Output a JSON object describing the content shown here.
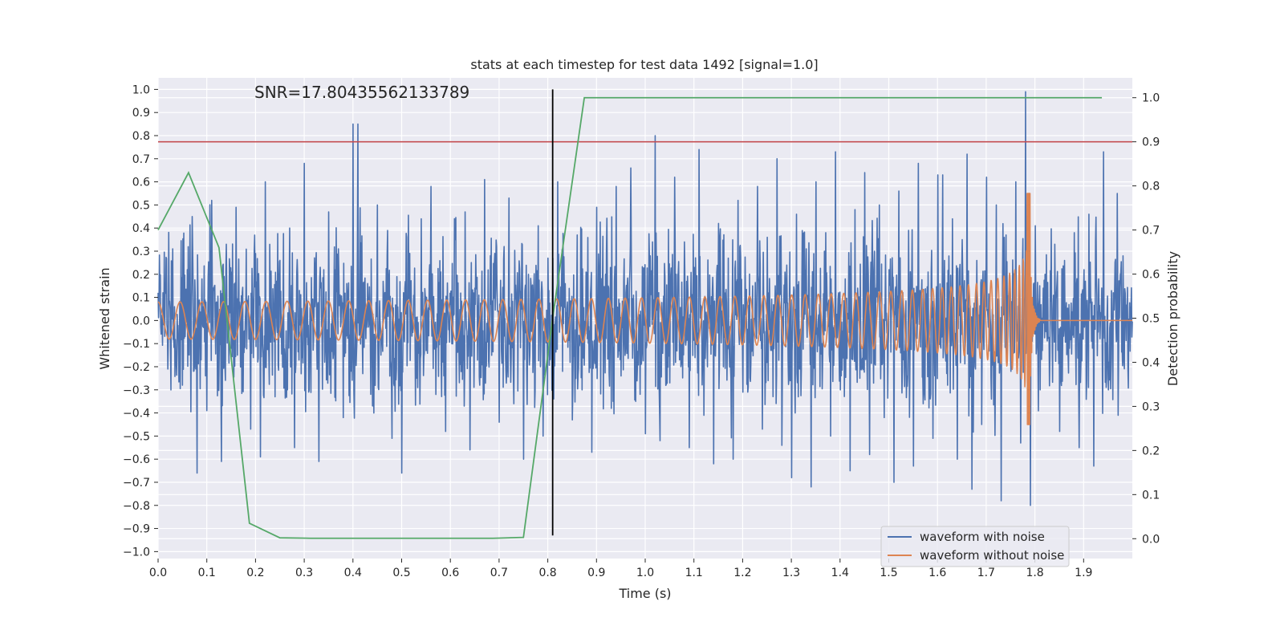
{
  "chart_data": {
    "type": "line",
    "title": "stats at each timestep for test data 1492 [signal=1.0]",
    "xlabel": "Time (s)",
    "ylabel": "Whitened strain",
    "y2label": "Detection probability",
    "annotation": "SNR=17.80435562133789",
    "xlim": [
      0.0,
      2.0
    ],
    "ylim": [
      -1.03,
      1.05
    ],
    "y2lim": [
      -0.045,
      1.045
    ],
    "xticks": [
      0.0,
      0.1,
      0.2,
      0.3,
      0.4,
      0.5,
      0.6,
      0.7,
      0.8,
      0.9,
      1.0,
      1.1,
      1.2,
      1.3,
      1.4,
      1.5,
      1.6,
      1.7,
      1.8,
      1.9
    ],
    "xtick_labels": [
      "0.0",
      "0.1",
      "0.2",
      "0.3",
      "0.4",
      "0.5",
      "0.6",
      "0.7",
      "0.8",
      "0.9",
      "1.0",
      "1.1",
      "1.2",
      "1.3",
      "1.4",
      "1.5",
      "1.6",
      "1.7",
      "1.8",
      "1.9"
    ],
    "yticks": [
      1.0,
      0.9,
      0.8,
      0.7,
      0.6,
      0.5,
      0.4,
      0.3,
      0.2,
      0.1,
      0.0,
      -0.1,
      -0.2,
      -0.3,
      -0.4,
      -0.5,
      -0.6,
      -0.7,
      -0.8,
      -0.9,
      -1.0
    ],
    "ytick_labels": [
      "1.0",
      "0.9",
      "0.8",
      "0.7",
      "0.6",
      "0.5",
      "0.4",
      "0.3",
      "0.2",
      "0.1",
      "0.0",
      "−0.1",
      "−0.2",
      "−0.3",
      "−0.4",
      "−0.5",
      "−0.6",
      "−0.7",
      "−0.8",
      "−0.9",
      "−1.0"
    ],
    "y2ticks": [
      1.0,
      0.9,
      0.8,
      0.7,
      0.6,
      0.5,
      0.4,
      0.3,
      0.2,
      0.1,
      0.0
    ],
    "y2tick_labels": [
      "1.0",
      "0.9",
      "0.8",
      "0.7",
      "0.6",
      "0.5",
      "0.4",
      "0.3",
      "0.2",
      "0.1",
      "0.0"
    ],
    "threshold": {
      "axis": "y2",
      "value": 0.9,
      "color": "#c44e52"
    },
    "detection_time": {
      "x": 0.81,
      "y_from": -0.93,
      "y_to": 1.0,
      "color": "#000000"
    },
    "legend": {
      "placement": "lower-right",
      "entries": [
        {
          "label": "waveform with noise",
          "color": "#4c72b0"
        },
        {
          "label": "waveform without noise",
          "color": "#dd8452"
        }
      ]
    },
    "series": [
      {
        "name": "Detection probability",
        "axis": "y2",
        "color": "#55a868",
        "x": [
          0.0,
          0.0625,
          0.125,
          0.1875,
          0.25,
          0.3125,
          0.375,
          0.4375,
          0.5,
          0.5625,
          0.625,
          0.6875,
          0.75,
          0.8125,
          0.875,
          0.9375,
          1.0,
          1.0625,
          1.125,
          1.1875,
          1.25,
          1.3125,
          1.375,
          1.4375,
          1.5,
          1.5625,
          1.625,
          1.6875,
          1.75,
          1.8125,
          1.875,
          1.9375
        ],
        "values": [
          0.7,
          0.83,
          0.66,
          0.035,
          0.002,
          0.001,
          0.001,
          0.001,
          0.001,
          0.001,
          0.001,
          0.001,
          0.003,
          0.52,
          1.0,
          1.0,
          1.0,
          1.0,
          1.0,
          1.0,
          1.0,
          1.0,
          1.0,
          1.0,
          1.0,
          1.0,
          1.0,
          1.0,
          1.0,
          1.0,
          1.0,
          1.0
        ]
      },
      {
        "name": "waveform with noise",
        "axis": "y",
        "color": "#4c72b0",
        "x_start": 0.0,
        "x_end": 2.0,
        "values": [
          0.12,
          -0.21,
          0.31,
          -0.05,
          -0.28,
          0.22,
          0.45,
          -0.66,
          0.18,
          -0.39,
          0.52,
          0.08,
          -0.61,
          0.33,
          -0.12,
          0.49,
          -0.2,
          0.05,
          -0.47,
          0.29,
          -0.59,
          0.6,
          0.11,
          -0.33,
          0.26,
          -0.18,
          0.4,
          -0.55,
          0.13,
          0.68,
          -0.3,
          0.05,
          -0.61,
          0.22,
          0.47,
          -0.14,
          0.31,
          -0.42,
          0.09,
          0.85,
          -0.23,
          0.16,
          -0.37,
          0.5,
          -0.08,
          0.28,
          -0.51,
          0.19,
          -0.66,
          0.36,
          0.02,
          -0.25,
          0.44,
          -0.13,
          0.58,
          -0.32,
          0.21,
          -0.48,
          0.07,
          0.35,
          -0.19,
          0.47,
          -0.56,
          0.14,
          -0.28,
          0.61,
          -0.1,
          0.25,
          -0.44,
          0.32,
          0.53,
          -0.36,
          0.11,
          -0.6,
          0.2,
          -0.15,
          0.41,
          -0.5,
          0.27,
          0.6,
          -0.22,
          0.08,
          -0.43,
          0.37,
          -0.3,
          0.16,
          -0.57,
          0.49,
          -0.06,
          0.3,
          -0.38,
          0.58,
          -0.24,
          0.12,
          0.66,
          -0.35,
          0.04,
          -0.49,
          0.28,
          0.8,
          -0.52,
          0.19,
          -0.27,
          0.62,
          -0.17,
          0.34,
          -0.55,
          0.23,
          0.74,
          -0.41,
          0.1,
          -0.62,
          0.42,
          -0.2,
          0.27,
          -0.6,
          0.52,
          -0.31,
          0.15,
          0.58,
          -0.47,
          0.36,
          -0.13,
          0.7,
          -0.54,
          0.24,
          -0.68,
          0.46,
          -0.21,
          0.31,
          -0.72,
          0.6,
          -0.07,
          0.38,
          -0.5,
          0.73,
          -0.3,
          0.18,
          -0.65,
          0.48,
          -0.25,
          0.64,
          -0.58,
          0.3,
          0.5,
          -0.42,
          0.22,
          -0.7,
          0.56,
          -0.17,
          0.39,
          -0.63,
          0.68,
          -0.36,
          0.21,
          -0.51,
          0.63,
          -0.28,
          0.44,
          -0.6,
          0.35,
          0.72,
          -0.73,
          0.26,
          -0.45,
          0.62,
          -0.34,
          0.5,
          -0.78,
          0.37,
          -0.22,
          0.6,
          -0.53,
          0.99,
          -0.8,
          0.41,
          -0.3,
          0.2,
          -0.15,
          0.33,
          -0.48,
          0.26,
          -0.12,
          0.38,
          -0.55,
          0.22,
          0.46,
          -0.63,
          0.18,
          0.73,
          -0.3,
          0.12,
          -0.41,
          0.28,
          -0.2
        ]
      },
      {
        "name": "waveform without noise",
        "axis": "y",
        "color": "#dd8452",
        "description_of_shape": "chirp: near-constant sinusoid amplitude ~0.08 up to ~1.0 s, amplitude and frequency grow until merger near t=1.79 s (peak +0.55 / -0.45), then flat at 0 until 2.0 s",
        "merger_time": 1.79,
        "initial_amplitude": 0.08,
        "peak_positive": 0.55,
        "peak_negative": -0.45
      }
    ]
  }
}
